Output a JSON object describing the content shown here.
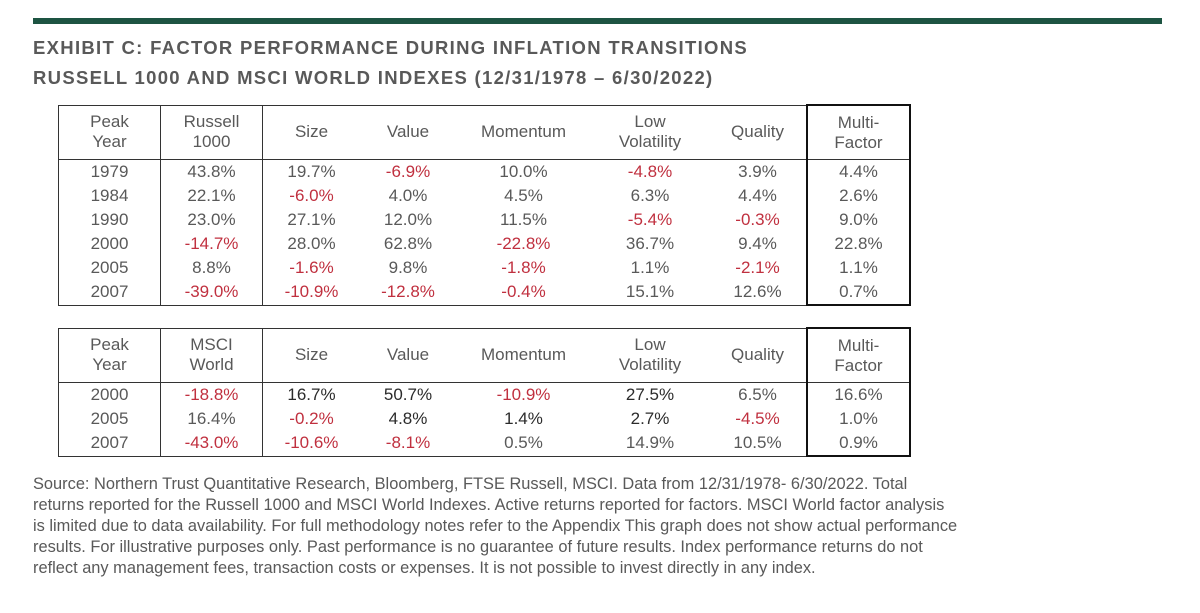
{
  "exhibit": {
    "accent_color": "#1d5442",
    "negative_color": "#c0303f",
    "title_line1": "EXHIBIT C: FACTOR PERFORMANCE DURING INFLATION TRANSITIONS",
    "title_line2": "RUSSELL 1000 AND MSCI WORLD INDEXES (12/31/1978 – 6/30/2022)"
  },
  "tables": [
    {
      "headers": [
        [
          "Peak",
          "Year"
        ],
        [
          "Russell",
          "1000"
        ],
        [
          "Size",
          ""
        ],
        [
          "Value",
          ""
        ],
        [
          "Momentum",
          ""
        ],
        [
          "Low",
          "Volatility"
        ],
        [
          "Quality",
          ""
        ],
        [
          "Multi-",
          "Factor"
        ]
      ],
      "rows": [
        [
          "1979",
          "43.8%",
          "19.7%",
          "-6.9%",
          "10.0%",
          "-4.8%",
          "3.9%",
          "4.4%"
        ],
        [
          "1984",
          "22.1%",
          "-6.0%",
          "4.0%",
          "4.5%",
          "6.3%",
          "4.4%",
          "2.6%"
        ],
        [
          "1990",
          "23.0%",
          "27.1%",
          "12.0%",
          "11.5%",
          "-5.4%",
          "-0.3%",
          "9.0%"
        ],
        [
          "2000",
          "-14.7%",
          "28.0%",
          "62.8%",
          "-22.8%",
          "36.7%",
          "9.4%",
          "22.8%"
        ],
        [
          "2005",
          "8.8%",
          "-1.6%",
          "9.8%",
          "-1.8%",
          "1.1%",
          "-2.1%",
          "1.1%"
        ],
        [
          "2007",
          "-39.0%",
          "-10.9%",
          "-12.8%",
          "-0.4%",
          "15.1%",
          "12.6%",
          "0.7%"
        ]
      ],
      "dark_rows": []
    },
    {
      "headers": [
        [
          "Peak",
          "Year"
        ],
        [
          "MSCI",
          "World"
        ],
        [
          "Size",
          ""
        ],
        [
          "Value",
          ""
        ],
        [
          "Momentum",
          ""
        ],
        [
          "Low",
          "Volatility"
        ],
        [
          "Quality",
          ""
        ],
        [
          "Multi-",
          "Factor"
        ]
      ],
      "rows": [
        [
          "2000",
          "-18.8%",
          "16.7%",
          "50.7%",
          "-10.9%",
          "27.5%",
          "6.5%",
          "16.6%"
        ],
        [
          "2005",
          "16.4%",
          "-0.2%",
          "4.8%",
          "1.4%",
          "2.7%",
          "-4.5%",
          "1.0%"
        ],
        [
          "2007",
          "-43.0%",
          "-10.6%",
          "-8.1%",
          "0.5%",
          "14.9%",
          "10.5%",
          "0.9%"
        ]
      ],
      "dark_rows": [
        0,
        1
      ]
    }
  ],
  "source_lines": [
    "Source: Northern Trust Quantitative Research, Bloomberg, FTSE Russell, MSCI. Data from 12/31/1978- 6/30/2022. Total",
    "returns reported for the Russell 1000 and MSCI World Indexes.  Active returns reported for factors. MSCI World factor analysis",
    "is limited due to data availability. For full methodology notes refer to the Appendix This graph does not show actual performance",
    "results. For illustrative purposes only. Past performance is no guarantee of future results. Index performance returns do not",
    "reflect any management fees, transaction costs or expenses. It is not possible to invest directly in any index."
  ]
}
